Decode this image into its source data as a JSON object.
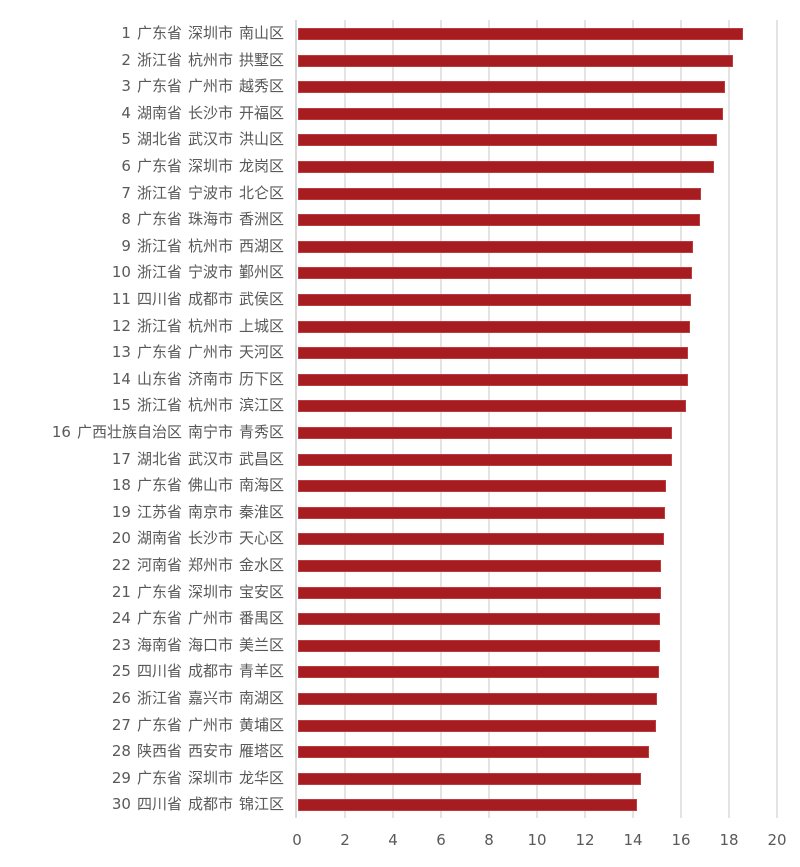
{
  "chart_data": {
    "type": "bar",
    "orientation": "horizontal",
    "title": "",
    "xlabel": "",
    "ylabel": "",
    "xlim": [
      0,
      20
    ],
    "x_ticks": [
      "0",
      "2",
      "4",
      "6",
      "8",
      "10",
      "12",
      "14",
      "16",
      "18",
      "20"
    ],
    "grid": true,
    "legend": null,
    "bar_color": "#a71c20",
    "categories": [
      "1 广东省 深圳市 南山区",
      "2 浙江省 杭州市 拱墅区",
      "3 广东省 广州市 越秀区",
      "4 湖南省 长沙市 开福区",
      "5 湖北省 武汉市 洪山区",
      "6 广东省 深圳市 龙岗区",
      "7 浙江省 宁波市 北仑区",
      "8 广东省 珠海市 香洲区",
      "9 浙江省 杭州市 西湖区",
      "10 浙江省 宁波市 鄞州区",
      "11 四川省 成都市 武侯区",
      "12 浙江省 杭州市 上城区",
      "13 广东省 广州市 天河区",
      "14 山东省 济南市 历下区",
      "15 浙江省 杭州市 滨江区",
      "16 广西壮族自治区 南宁市 青秀区",
      "17 湖北省 武汉市 武昌区",
      "18 广东省 佛山市 南海区",
      "19 江苏省 南京市 秦淮区",
      "20 湖南省 长沙市 天心区",
      "22 河南省 郑州市 金水区",
      "21 广东省 深圳市 宝安区",
      "24 广东省 广州市 番禺区",
      "23 海南省 海口市 美兰区",
      "25 四川省 成都市 青羊区",
      "26 浙江省 嘉兴市 南湖区",
      "27 广东省 广州市 黄埔区",
      "28 陕西省 西安市 雁塔区",
      "29 广东省 深圳市 龙华区",
      "30 四川省 成都市 锦江区"
    ],
    "values": [
      18.57,
      18.17,
      17.85,
      17.76,
      17.51,
      17.36,
      16.83,
      16.79,
      16.5,
      16.47,
      16.43,
      16.39,
      16.31,
      16.31,
      16.22,
      15.61,
      15.61,
      15.37,
      15.33,
      15.29,
      15.17,
      15.17,
      15.12,
      15.12,
      15.08,
      15.01,
      14.97,
      14.65,
      14.32,
      14.15
    ]
  },
  "rows": [
    {
      "rank": "1",
      "province": "广东省",
      "city": "深圳市",
      "district": "南山区",
      "value": 18.57
    },
    {
      "rank": "2",
      "province": "浙江省",
      "city": "杭州市",
      "district": "拱墅区",
      "value": 18.17
    },
    {
      "rank": "3",
      "province": "广东省",
      "city": "广州市",
      "district": "越秀区",
      "value": 17.85
    },
    {
      "rank": "4",
      "province": "湖南省",
      "city": "长沙市",
      "district": "开福区",
      "value": 17.76
    },
    {
      "rank": "5",
      "province": "湖北省",
      "city": "武汉市",
      "district": "洪山区",
      "value": 17.51
    },
    {
      "rank": "6",
      "province": "广东省",
      "city": "深圳市",
      "district": "龙岗区",
      "value": 17.36
    },
    {
      "rank": "7",
      "province": "浙江省",
      "city": "宁波市",
      "district": "北仑区",
      "value": 16.83
    },
    {
      "rank": "8",
      "province": "广东省",
      "city": "珠海市",
      "district": "香洲区",
      "value": 16.79
    },
    {
      "rank": "9",
      "province": "浙江省",
      "city": "杭州市",
      "district": "西湖区",
      "value": 16.5
    },
    {
      "rank": "10",
      "province": "浙江省",
      "city": "宁波市",
      "district": "鄞州区",
      "value": 16.47
    },
    {
      "rank": "11",
      "province": "四川省",
      "city": "成都市",
      "district": "武侯区",
      "value": 16.43
    },
    {
      "rank": "12",
      "province": "浙江省",
      "city": "杭州市",
      "district": "上城区",
      "value": 16.39
    },
    {
      "rank": "13",
      "province": "广东省",
      "city": "广州市",
      "district": "天河区",
      "value": 16.31
    },
    {
      "rank": "14",
      "province": "山东省",
      "city": "济南市",
      "district": "历下区",
      "value": 16.31
    },
    {
      "rank": "15",
      "province": "浙江省",
      "city": "杭州市",
      "district": "滨江区",
      "value": 16.22
    },
    {
      "rank": "16",
      "province": "广西壮族自治区",
      "city": "南宁市",
      "district": "青秀区",
      "value": 15.61
    },
    {
      "rank": "17",
      "province": "湖北省",
      "city": "武汉市",
      "district": "武昌区",
      "value": 15.61
    },
    {
      "rank": "18",
      "province": "广东省",
      "city": "佛山市",
      "district": "南海区",
      "value": 15.37
    },
    {
      "rank": "19",
      "province": "江苏省",
      "city": "南京市",
      "district": "秦淮区",
      "value": 15.33
    },
    {
      "rank": "20",
      "province": "湖南省",
      "city": "长沙市",
      "district": "天心区",
      "value": 15.29
    },
    {
      "rank": "22",
      "province": "河南省",
      "city": "郑州市",
      "district": "金水区",
      "value": 15.17
    },
    {
      "rank": "21",
      "province": "广东省",
      "city": "深圳市",
      "district": "宝安区",
      "value": 15.17
    },
    {
      "rank": "24",
      "province": "广东省",
      "city": "广州市",
      "district": "番禺区",
      "value": 15.12
    },
    {
      "rank": "23",
      "province": "海南省",
      "city": "海口市",
      "district": "美兰区",
      "value": 15.12
    },
    {
      "rank": "25",
      "province": "四川省",
      "city": "成都市",
      "district": "青羊区",
      "value": 15.08
    },
    {
      "rank": "26",
      "province": "浙江省",
      "city": "嘉兴市",
      "district": "南湖区",
      "value": 15.01
    },
    {
      "rank": "27",
      "province": "广东省",
      "city": "广州市",
      "district": "黄埔区",
      "value": 14.97
    },
    {
      "rank": "28",
      "province": "陕西省",
      "city": "西安市",
      "district": "雁塔区",
      "value": 14.65
    },
    {
      "rank": "29",
      "province": "广东省",
      "city": "深圳市",
      "district": "龙华区",
      "value": 14.32
    },
    {
      "rank": "30",
      "province": "四川省",
      "city": "成都市",
      "district": "锦江区",
      "value": 14.15
    }
  ],
  "axis": {
    "min": 0,
    "max": 20,
    "ticks": [
      "0",
      "2",
      "4",
      "6",
      "8",
      "10",
      "12",
      "14",
      "16",
      "18",
      "20"
    ]
  },
  "colors": {
    "bar": "#a71c20",
    "grid": "#e3e3e3",
    "text": "#595959"
  }
}
